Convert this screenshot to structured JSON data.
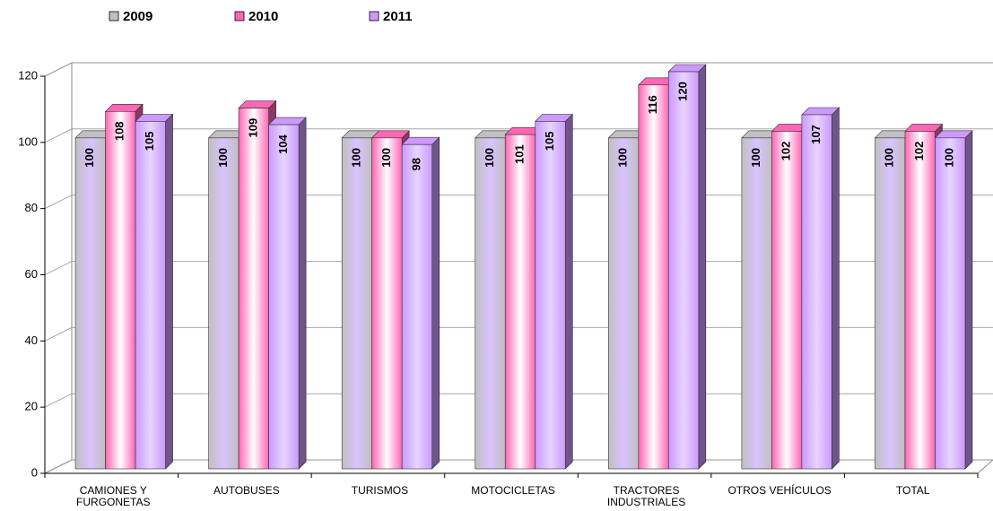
{
  "chart_data": {
    "type": "bar3d",
    "categories": [
      "CAMIONES Y FURGONETAS",
      "AUTOBUSES",
      "TURISMOS",
      "MOTOCICLETAS",
      "TRACTORES INDUSTRIALES",
      "OTROS VEHÍCULOS",
      "TOTAL"
    ],
    "series": [
      {
        "name": "2009",
        "color": "#c0c0c0",
        "values": [
          100,
          100,
          100,
          100,
          100,
          100,
          100
        ]
      },
      {
        "name": "2010",
        "color": "#ff66b3",
        "values": [
          108,
          109,
          100,
          101,
          116,
          102,
          102
        ]
      },
      {
        "name": "2011",
        "color": "#cc99ff",
        "values": [
          105,
          104,
          98,
          105,
          120,
          107,
          100
        ]
      }
    ],
    "ylim": [
      0,
      120
    ],
    "yticks": [
      0,
      20,
      40,
      60,
      80,
      100,
      120
    ],
    "grid": true,
    "legend": "top-left"
  }
}
